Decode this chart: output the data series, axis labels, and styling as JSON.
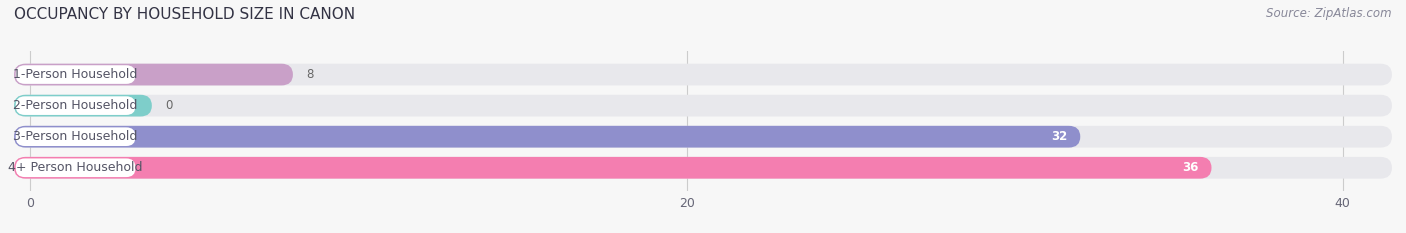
{
  "title": "OCCUPANCY BY HOUSEHOLD SIZE IN CANON",
  "source": "Source: ZipAtlas.com",
  "categories": [
    "1-Person Household",
    "2-Person Household",
    "3-Person Household",
    "4+ Person Household"
  ],
  "values": [
    8,
    0,
    32,
    36
  ],
  "bar_colors": [
    "#c9a0c8",
    "#7ececa",
    "#8f8fcc",
    "#f47eb0"
  ],
  "background_color": "#f7f7f7",
  "bar_background_color": "#e8e8ec",
  "label_box_color": "#ffffff",
  "label_text_color": "#555566",
  "value_color_inside": "#ffffff",
  "value_color_outside": "#666666",
  "title_color": "#333344",
  "source_color": "#888899",
  "xlim_min": -0.5,
  "xlim_max": 41.5,
  "xticks": [
    0,
    20,
    40
  ],
  "title_fontsize": 11,
  "source_fontsize": 8.5,
  "label_fontsize": 9,
  "value_fontsize": 8.5,
  "tick_fontsize": 9
}
